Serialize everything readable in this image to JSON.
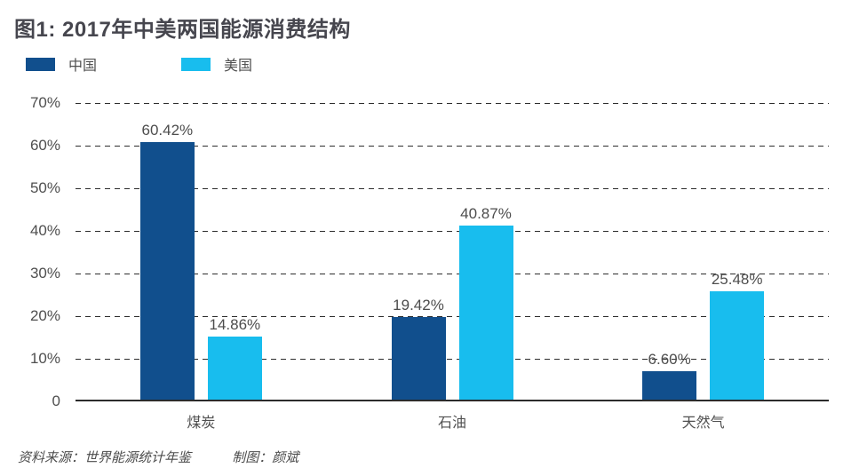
{
  "title": "图1: 2017年中美两国能源消费结构",
  "legend": [
    {
      "label": "中国",
      "color": "#114f8d"
    },
    {
      "label": "美国",
      "color": "#18bdee"
    }
  ],
  "chart_data": {
    "type": "bar",
    "title": "图1: 2017年中美两国能源消费结构",
    "categories": [
      "煤炭",
      "石油",
      "天然气"
    ],
    "series": [
      {
        "name": "中国",
        "color": "#114f8d",
        "values": [
          60.42,
          19.42,
          6.6
        ],
        "labels": [
          "60.42%",
          "19.42%",
          "6.60%"
        ]
      },
      {
        "name": "美国",
        "color": "#18bdee",
        "values": [
          14.86,
          40.87,
          25.48
        ],
        "labels": [
          "14.86%",
          "40.87%",
          "25.48%"
        ]
      }
    ],
    "xlabel": "",
    "ylabel": "",
    "ylim": [
      0,
      70
    ],
    "y_ticks": [
      "70%",
      "60%",
      "50%",
      "40%",
      "30%",
      "20%",
      "10%",
      "0"
    ],
    "grid": "horizontal-dashed",
    "legend_position": "top-left"
  },
  "footer": {
    "source": "资料来源：世界能源统计年鉴",
    "credit": "制图：颜斌"
  }
}
